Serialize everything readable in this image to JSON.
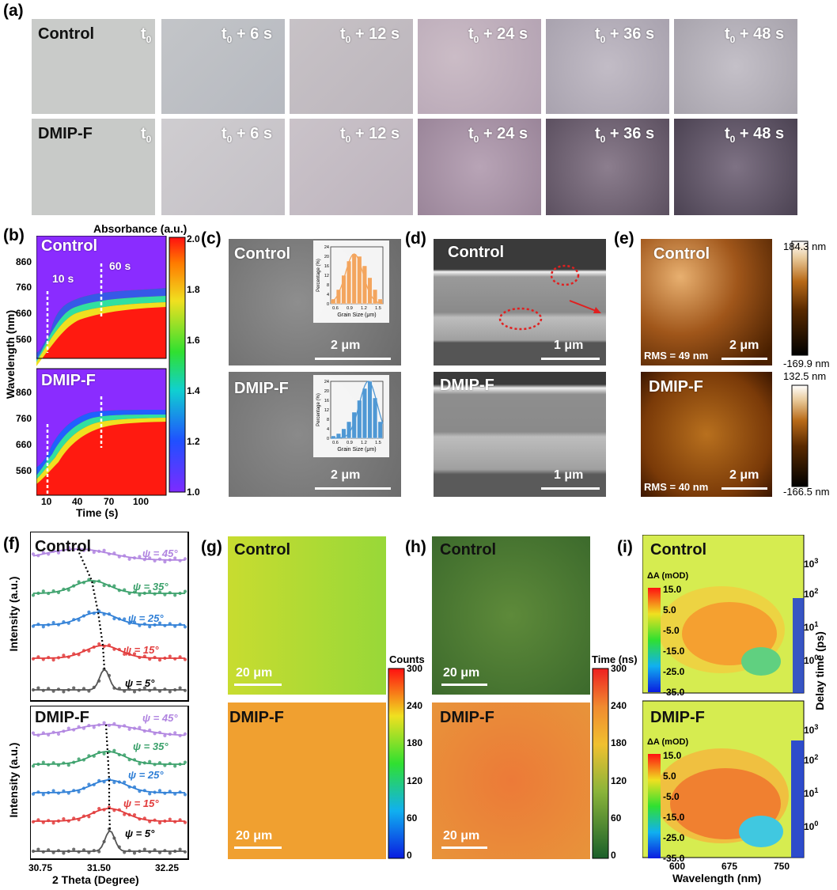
{
  "panel_letters": {
    "a": "(a)",
    "b": "(b)",
    "c": "(c)",
    "d": "(d)",
    "e": "(e)",
    "f": "(f)",
    "g": "(g)",
    "h": "(h)",
    "i": "(i)"
  },
  "samples": {
    "control": "Control",
    "dmip": "DMIP-F"
  },
  "panel_a": {
    "time_labels": [
      "t",
      "t + 6 s",
      "t + 12 s",
      "t + 24 s",
      "t + 36 s",
      "t + 48 s"
    ],
    "time_sub": "0"
  },
  "panel_b": {
    "colorbar_title": "Absorbance (a.u.)",
    "colorbar_ticks": [
      "2.0",
      "1.8",
      "1.6",
      "1.4",
      "1.2",
      "1.0"
    ],
    "yticks_top": [
      "860",
      "760",
      "660",
      "560"
    ],
    "yticks_bottom": [
      "860",
      "760",
      "660",
      "560"
    ],
    "ylabel": "Wavelength (nm)",
    "xlabel": "Time (s)",
    "xticks": [
      "10",
      "40",
      "70",
      "100"
    ],
    "annot_10": "10 s",
    "annot_60": "60 s"
  },
  "panel_c": {
    "scale": "2 μm",
    "inset_ylabel": "Percentage (%)",
    "inset_xlabel": "Grain Size (μm)",
    "inset_yticks": [
      "24",
      "20",
      "16",
      "12",
      "8",
      "4",
      "0"
    ],
    "inset_xticks": [
      "0.6",
      "0.9",
      "1.2",
      "1.5"
    ],
    "control_hist": [
      2,
      6,
      12,
      18,
      21,
      20,
      16,
      11,
      6,
      2
    ],
    "dmip_hist": [
      1,
      2,
      4,
      7,
      11,
      16,
      21,
      24,
      17,
      7
    ],
    "control_color": "#f3a55e",
    "dmip_color": "#4f98d4"
  },
  "panel_d": {
    "scale": "1 μm"
  },
  "panel_e": {
    "scale": "2 μm",
    "control_rms": "RMS = 49 nm",
    "dmip_rms": "RMS = 40 nm",
    "control_max": "184.3 nm",
    "control_min": "-169.9 nm",
    "dmip_max": "132.5 nm",
    "dmip_min": "-166.5 nm"
  },
  "panel_f": {
    "ylabel": "Intensity (a.u.)",
    "xlabel": "2 Theta (Degree)",
    "xticks": [
      "30.75",
      "31.50",
      "32.25"
    ],
    "psi_labels": [
      "ψ = 45°",
      "ψ = 35°",
      "ψ = 25°",
      "ψ = 15°",
      "ψ = 5°"
    ],
    "psi_colors": [
      "#b084e0",
      "#3aa06a",
      "#2f7fd6",
      "#e23b3b",
      "#555555"
    ]
  },
  "panel_g": {
    "colorbar_title": "Counts",
    "colorbar_ticks": [
      "300",
      "240",
      "180",
      "120",
      "60",
      "0"
    ],
    "scale": "20 μm"
  },
  "panel_h": {
    "colorbar_title": "Time (ns)",
    "colorbar_ticks": [
      "300",
      "240",
      "180",
      "120",
      "60",
      "0"
    ],
    "scale": "20 μm"
  },
  "panel_i": {
    "colorbar_title": "ΔA (mOD)",
    "colorbar_ticks": [
      "15.0",
      "5.0",
      "-5.0",
      "-15.0",
      "-25.0",
      "-35.0"
    ],
    "ylabel": "Delay time (ps)",
    "xlabel": "Wavelength (nm)",
    "xticks": [
      "600",
      "675",
      "750"
    ],
    "yticks_base": "10",
    "yticks_exp": [
      "3",
      "2",
      "1",
      "0"
    ]
  }
}
